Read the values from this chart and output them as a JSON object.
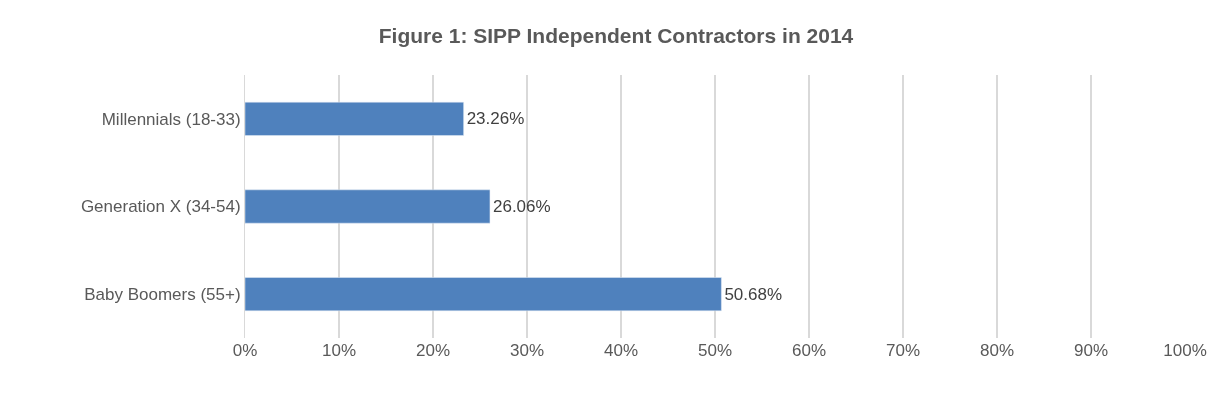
{
  "chart_data": {
    "type": "bar",
    "orientation": "horizontal",
    "title": "Figure 1: SIPP Independent Contractors in 2014",
    "categories": [
      "Millennials (18-33)",
      "Generation X (34-54)",
      "Baby Boomers (55+)"
    ],
    "values": [
      23.26,
      26.06,
      50.68
    ],
    "value_labels": [
      "23.26%",
      "26.06%",
      "50.68%"
    ],
    "color": "#4f81bd",
    "xlim": [
      0,
      100
    ],
    "xticks": [
      {
        "value": 0,
        "label": "0%"
      },
      {
        "value": 10,
        "label": "10%"
      },
      {
        "value": 20,
        "label": "20%"
      },
      {
        "value": 30,
        "label": "30%"
      },
      {
        "value": 40,
        "label": "40%"
      },
      {
        "value": 50,
        "label": "50%"
      },
      {
        "value": 60,
        "label": "60%"
      },
      {
        "value": 70,
        "label": "70%"
      },
      {
        "value": 80,
        "label": "80%"
      },
      {
        "value": 90,
        "label": "90%"
      },
      {
        "value": 100,
        "label": "100%"
      }
    ],
    "grid": "x"
  }
}
